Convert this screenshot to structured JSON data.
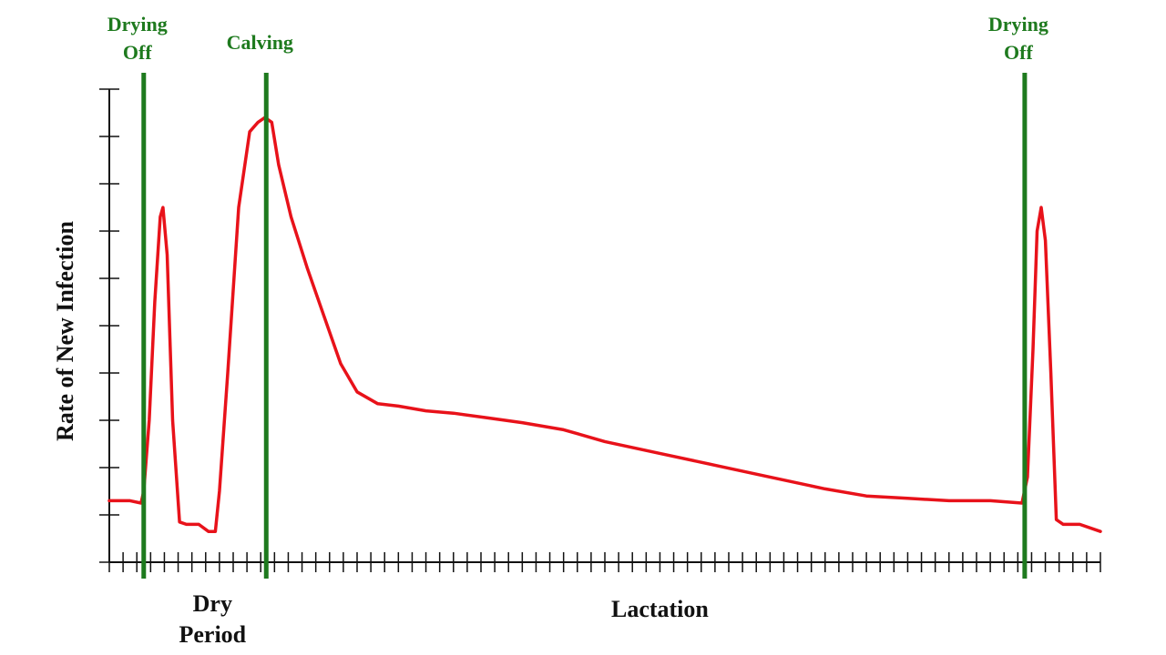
{
  "chart_data": {
    "type": "line",
    "title": "",
    "ylabel": "Rate of New Infection",
    "xlabel": "",
    "xlim": [
      0,
      72
    ],
    "ylim": [
      0,
      10
    ],
    "y_ticks": [
      0,
      1,
      2,
      3,
      4,
      5,
      6,
      7,
      8,
      9,
      10
    ],
    "x_tick_count": 73,
    "grid": false,
    "x_category_labels": [
      {
        "lines": [
          "Dry",
          "Period"
        ],
        "x": 7.5
      },
      {
        "lines": [
          "Lactation"
        ],
        "x": 40
      }
    ],
    "events": [
      {
        "lines": [
          "Drying",
          "Off"
        ],
        "x": 2.5
      },
      {
        "lines": [
          "Calving"
        ],
        "x": 11.4
      },
      {
        "lines": [
          "Drying",
          "Off"
        ],
        "x": 66.5
      }
    ],
    "series": [
      {
        "color": "#e8121a",
        "points": [
          [
            0,
            1.3
          ],
          [
            1.5,
            1.3
          ],
          [
            2.3,
            1.25
          ],
          [
            2.5,
            1.5
          ],
          [
            2.9,
            3.0
          ],
          [
            3.3,
            5.5
          ],
          [
            3.7,
            7.3
          ],
          [
            3.9,
            7.5
          ],
          [
            4.2,
            6.5
          ],
          [
            4.6,
            3.0
          ],
          [
            5.1,
            0.85
          ],
          [
            5.6,
            0.8
          ],
          [
            6.5,
            0.8
          ],
          [
            7.2,
            0.65
          ],
          [
            7.7,
            0.65
          ],
          [
            8.0,
            1.5
          ],
          [
            8.6,
            4.0
          ],
          [
            9.4,
            7.5
          ],
          [
            10.2,
            9.1
          ],
          [
            10.8,
            9.3
          ],
          [
            11.3,
            9.4
          ],
          [
            11.8,
            9.3
          ],
          [
            12.3,
            8.4
          ],
          [
            13.2,
            7.3
          ],
          [
            14.4,
            6.2
          ],
          [
            15.6,
            5.2
          ],
          [
            16.8,
            4.2
          ],
          [
            18.0,
            3.6
          ],
          [
            19.5,
            3.35
          ],
          [
            21.0,
            3.3
          ],
          [
            23.0,
            3.2
          ],
          [
            25.0,
            3.15
          ],
          [
            27.5,
            3.05
          ],
          [
            30.0,
            2.95
          ],
          [
            33.0,
            2.8
          ],
          [
            36.0,
            2.55
          ],
          [
            40.0,
            2.3
          ],
          [
            44.0,
            2.05
          ],
          [
            48.0,
            1.8
          ],
          [
            52.0,
            1.55
          ],
          [
            55.0,
            1.4
          ],
          [
            58.0,
            1.35
          ],
          [
            61.0,
            1.3
          ],
          [
            64.0,
            1.3
          ],
          [
            66.3,
            1.25
          ],
          [
            66.7,
            1.8
          ],
          [
            67.1,
            4.5
          ],
          [
            67.4,
            7.0
          ],
          [
            67.7,
            7.5
          ],
          [
            68.0,
            6.8
          ],
          [
            68.4,
            4.0
          ],
          [
            68.8,
            0.9
          ],
          [
            69.3,
            0.8
          ],
          [
            70.5,
            0.8
          ],
          [
            72.0,
            0.65
          ]
        ]
      }
    ],
    "colors": {
      "curve": "#e8121a",
      "event_line": "#1e7a1e",
      "axis": "#111111"
    }
  }
}
